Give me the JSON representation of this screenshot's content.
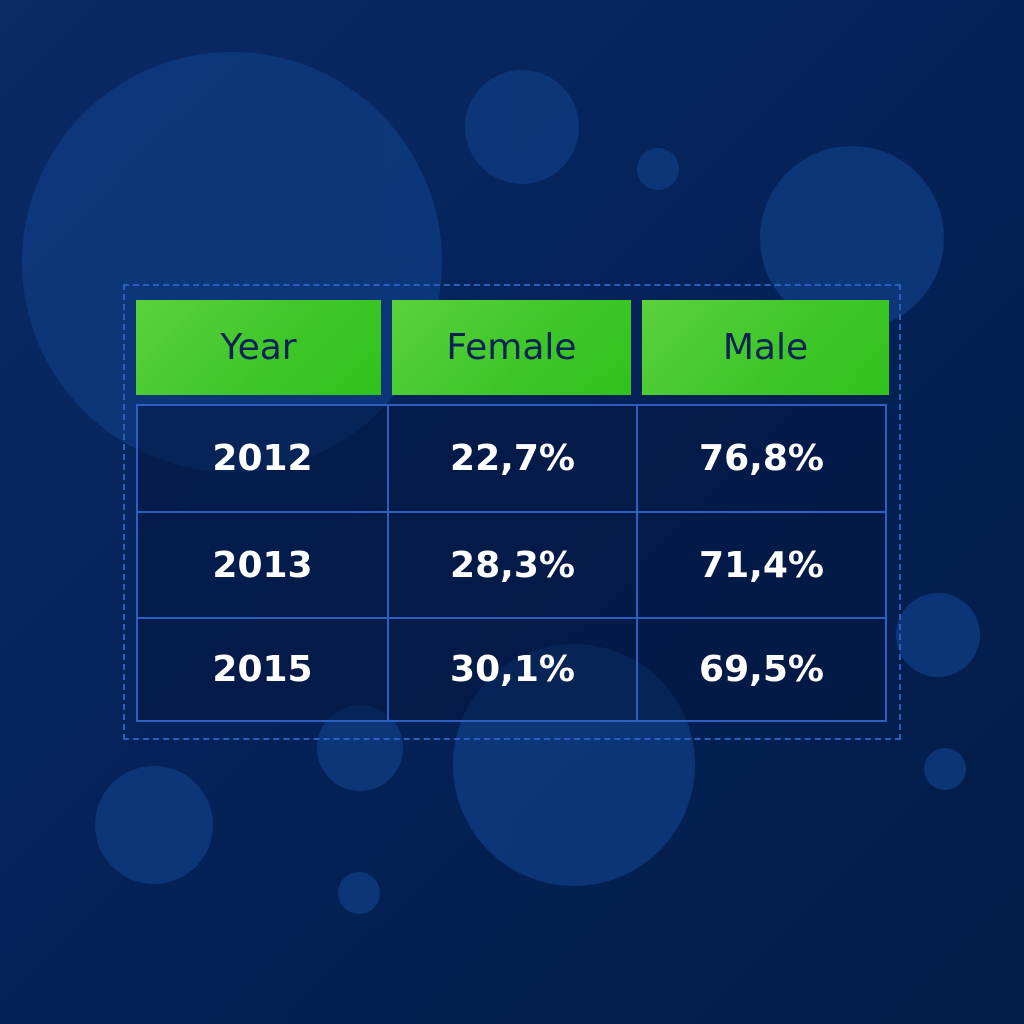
{
  "chart_data": {
    "type": "table",
    "columns": [
      "Year",
      "Female",
      "Male"
    ],
    "rows": [
      [
        "2012",
        "22,7%",
        "76,8%"
      ],
      [
        "2013",
        "28,3%",
        "71,4%"
      ],
      [
        "2015",
        "30,1%",
        "69,5%"
      ]
    ]
  },
  "colors": {
    "background": "#05235a",
    "header_fill": "#44c92e",
    "header_text": "#0a2354",
    "grid_line": "#2c5fc1",
    "cell_text": "#ffffff",
    "bubble": "#0e3a7e"
  }
}
